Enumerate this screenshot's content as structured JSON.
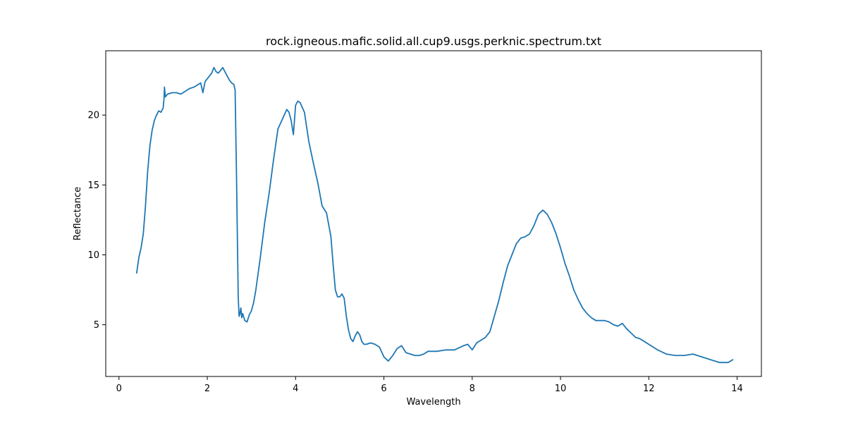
{
  "chart_data": {
    "type": "line",
    "title": "rock.igneous.mafic.solid.all.cup9.usgs.perknic.spectrum.txt",
    "xlabel": "Wavelength",
    "ylabel": "Reflectance",
    "xlim": [
      -0.3,
      14.55
    ],
    "ylim": [
      1.3,
      24.6
    ],
    "x_ticks": [
      0,
      2,
      4,
      6,
      8,
      10,
      12,
      14
    ],
    "x_tick_labels": [
      "0",
      "2",
      "4",
      "6",
      "8",
      "10",
      "12",
      "14"
    ],
    "y_ticks": [
      5,
      10,
      15,
      20
    ],
    "y_tick_labels": [
      "5",
      "10",
      "15",
      "20"
    ],
    "grid": false,
    "line_color": "#1f77b4",
    "series": [
      {
        "x": [
          0.4,
          0.45,
          0.5,
          0.55,
          0.6,
          0.65,
          0.7,
          0.75,
          0.8,
          0.85,
          0.9,
          0.95,
          1.0,
          1.02,
          1.03,
          1.05,
          1.1,
          1.2,
          1.3,
          1.4,
          1.5,
          1.6,
          1.7,
          1.8,
          1.85,
          1.9,
          1.95,
          2.0,
          2.05,
          2.1,
          2.15,
          2.2,
          2.25,
          2.3,
          2.35,
          2.4,
          2.45,
          2.5,
          2.55,
          2.6,
          2.63,
          2.66,
          2.68,
          2.7,
          2.72,
          2.74,
          2.76,
          2.78,
          2.8,
          2.85,
          2.9,
          2.95,
          3.0,
          3.05,
          3.1,
          3.2,
          3.3,
          3.4,
          3.5,
          3.6,
          3.7,
          3.8,
          3.85,
          3.9,
          3.95,
          4.0,
          4.05,
          4.1,
          4.2,
          4.3,
          4.4,
          4.5,
          4.6,
          4.7,
          4.8,
          4.85,
          4.9,
          4.95,
          5.0,
          5.05,
          5.1,
          5.15,
          5.2,
          5.25,
          5.3,
          5.35,
          5.4,
          5.45,
          5.5,
          5.55,
          5.6,
          5.7,
          5.8,
          5.9,
          6.0,
          6.1,
          6.2,
          6.3,
          6.4,
          6.5,
          6.6,
          6.7,
          6.8,
          6.9,
          7.0,
          7.2,
          7.4,
          7.6,
          7.8,
          7.9,
          8.0,
          8.1,
          8.2,
          8.3,
          8.4,
          8.5,
          8.6,
          8.7,
          8.8,
          8.9,
          9.0,
          9.1,
          9.2,
          9.3,
          9.4,
          9.5,
          9.6,
          9.7,
          9.8,
          9.9,
          10.0,
          10.1,
          10.2,
          10.3,
          10.4,
          10.5,
          10.6,
          10.7,
          10.8,
          10.9,
          11.0,
          11.1,
          11.2,
          11.3,
          11.4,
          11.5,
          11.6,
          11.7,
          11.8,
          11.9,
          12.0,
          12.2,
          12.4,
          12.6,
          12.8,
          13.0,
          13.2,
          13.4,
          13.6,
          13.7,
          13.8,
          13.9
        ],
        "y": [
          8.7,
          9.8,
          10.5,
          11.5,
          13.5,
          16.0,
          17.8,
          18.9,
          19.6,
          20.0,
          20.3,
          20.2,
          20.5,
          21.2,
          22.0,
          21.3,
          21.5,
          21.6,
          21.6,
          21.5,
          21.7,
          21.9,
          22.0,
          22.2,
          22.3,
          21.6,
          22.4,
          22.6,
          22.8,
          23.0,
          23.4,
          23.1,
          23.0,
          23.2,
          23.4,
          23.1,
          22.8,
          22.5,
          22.3,
          22.2,
          21.8,
          16.0,
          11.5,
          7.0,
          5.6,
          5.8,
          6.2,
          5.5,
          5.8,
          5.3,
          5.2,
          5.7,
          6.0,
          6.6,
          7.5,
          9.8,
          12.3,
          14.4,
          16.8,
          19.0,
          19.7,
          20.4,
          20.2,
          19.6,
          18.6,
          20.7,
          21.0,
          20.9,
          20.2,
          18.1,
          16.6,
          15.2,
          13.5,
          13.0,
          11.3,
          9.3,
          7.5,
          7.0,
          7.0,
          7.2,
          6.9,
          5.6,
          4.6,
          4.0,
          3.8,
          4.2,
          4.5,
          4.3,
          3.8,
          3.6,
          3.6,
          3.7,
          3.6,
          3.4,
          2.7,
          2.4,
          2.8,
          3.3,
          3.5,
          3.0,
          2.9,
          2.8,
          2.8,
          2.9,
          3.1,
          3.1,
          3.2,
          3.2,
          3.5,
          3.6,
          3.2,
          3.7,
          3.9,
          4.1,
          4.5,
          5.6,
          6.7,
          8.0,
          9.2,
          10.0,
          10.8,
          11.2,
          11.3,
          11.5,
          12.1,
          12.9,
          13.2,
          12.9,
          12.3,
          11.5,
          10.5,
          9.4,
          8.5,
          7.5,
          6.8,
          6.2,
          5.8,
          5.5,
          5.3,
          5.3,
          5.3,
          5.2,
          5.0,
          4.9,
          5.1,
          4.7,
          4.4,
          4.1,
          4.0,
          3.8,
          3.6,
          3.2,
          2.9,
          2.8,
          2.8,
          2.9,
          2.7,
          2.5,
          2.3,
          2.3,
          2.3,
          2.5
        ]
      }
    ]
  }
}
